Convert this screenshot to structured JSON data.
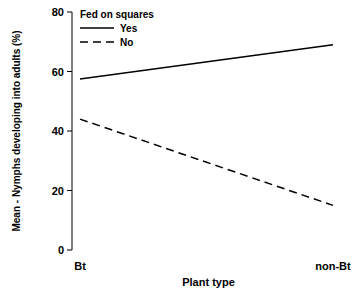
{
  "chart_data": {
    "type": "line",
    "x_label": "Plant type",
    "y_label": "Mean - Nymphs developing into adults (%)",
    "categories": [
      "Bt",
      "non-Bt"
    ],
    "legend_title": "Fed on squares",
    "series": [
      {
        "name": "Yes",
        "color": "#000000",
        "line_style": "solid",
        "values": [
          57.5,
          69
        ]
      },
      {
        "name": "No",
        "color": "#000000",
        "line_style": "dashed",
        "values": [
          44,
          15
        ]
      }
    ],
    "ylim": [
      0,
      80
    ],
    "yticks": [
      0,
      20,
      40,
      60,
      80
    ],
    "grid": false,
    "legend": "top-left"
  }
}
